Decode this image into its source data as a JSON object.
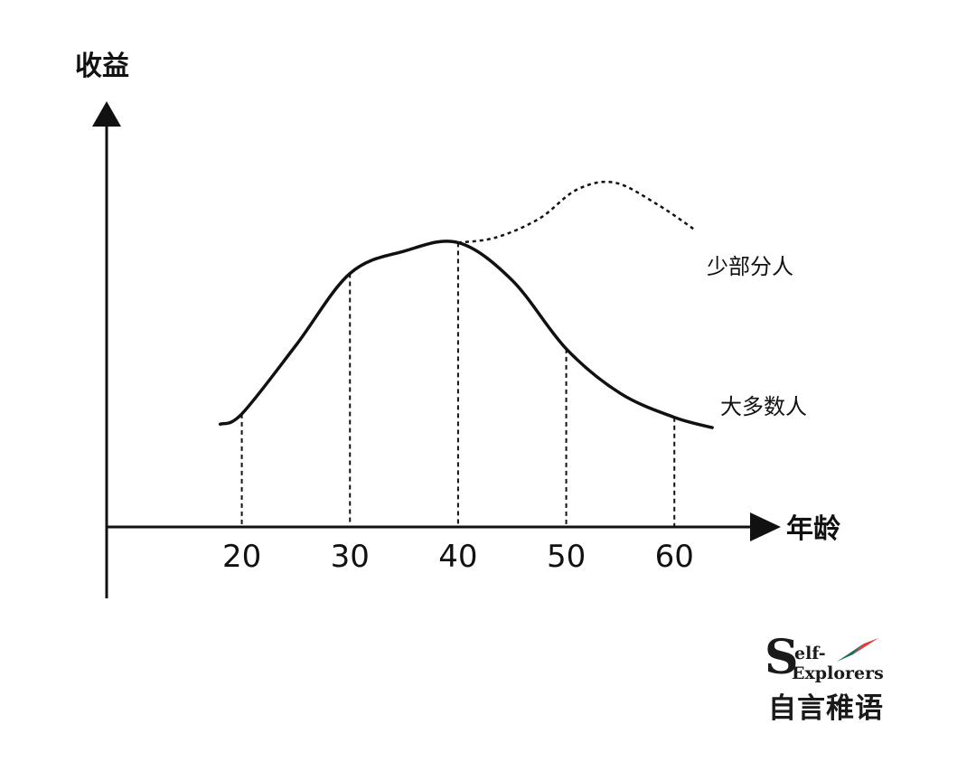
{
  "chart_data": {
    "type": "line",
    "title": "",
    "ylabel": "收益",
    "xlabel": "年龄",
    "ticks": [
      "20",
      "30",
      "40",
      "50",
      "60"
    ],
    "x_ticks": [
      20,
      30,
      40,
      50,
      60
    ],
    "xlim": [
      7.5,
      67
    ],
    "ylim": [
      0,
      10
    ],
    "y_ticks_shown": false,
    "grid": false,
    "series": [
      {
        "name": "大多数人",
        "style": "solid",
        "x": [
          18,
          20,
          25,
          30,
          35,
          40,
          45,
          50,
          55,
          60,
          63.5
        ],
        "y": [
          3.0,
          3.3,
          5.3,
          7.4,
          8.05,
          8.3,
          7.2,
          5.2,
          3.9,
          3.2,
          2.9
        ]
      },
      {
        "name": "少部分人",
        "style": "dashed",
        "x": [
          40,
          43.5,
          47.5,
          51,
          54.5,
          58.5,
          62
        ],
        "y": [
          8.3,
          8.45,
          9.0,
          9.85,
          10.05,
          9.4,
          8.65
        ]
      }
    ],
    "drop_lines": {
      "style": "dashed",
      "x": [
        20,
        30,
        40,
        50,
        60
      ]
    }
  },
  "logo": {
    "S": "S",
    "line1": "elf-",
    "line2": "Explorers",
    "cn": "自言稚语",
    "accent_color": "#1f6b5e",
    "accent_color2": "#e23b3b"
  }
}
